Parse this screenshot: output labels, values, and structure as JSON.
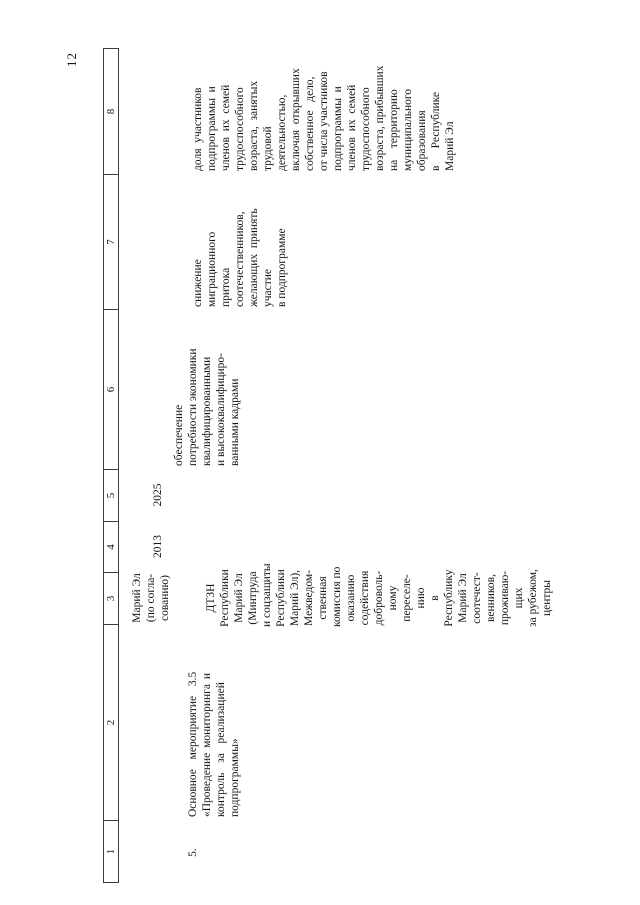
{
  "page": {
    "number": "12"
  },
  "table": {
    "column_numbers": [
      "1",
      "2",
      "3",
      "4",
      "5",
      "6",
      "7",
      "8"
    ],
    "prev_row_tail": {
      "col3_lines": [
        "Марий Эл",
        "(по согла-",
        "сованию)"
      ]
    },
    "row5": {
      "num": "5.",
      "col2_lines": [
        "Основное  мероприятие  3.5",
        "«Проведение мониторинга и",
        "контроль  за  реализацией",
        "подпрограммы»"
      ],
      "col3_lines": [
        "ДТЗН",
        "Республики",
        "Марий Эл",
        "(Минтруда",
        "и соцзащиты",
        "Республики",
        "Марий Эл),",
        "Межведом-",
        "ственная",
        "комиссия по",
        "оказанию",
        "содействия",
        "доброволь-",
        "ному",
        "переселе-",
        "нию",
        "в",
        "Республику",
        "Марий Эл",
        "соотечест-",
        "венников,",
        "проживаю-",
        "щих",
        "за рубежом,",
        "центры"
      ],
      "col4_year": "2013",
      "col5_year": "2025",
      "col6_lines": [
        "обеспечение",
        "потребности экономики",
        "квалифицированными",
        "и высококвалифициро-",
        "ванными кадрами"
      ],
      "col7_lines": [
        "снижение",
        "миграционного",
        "притока",
        "соотечественников,",
        "желающих  принять",
        "участие",
        "в подпрограмме"
      ],
      "col8_lines": [
        "доля  участников",
        "подпрограммы  и",
        "членов  их  семей",
        "трудоспособного",
        "возраста,  занятых",
        "трудовой",
        "деятельностью,",
        "включая  открывших",
        "собственное   дело,",
        "от числа участников",
        "подпрограммы  и",
        "членов  их  семей",
        "трудоспособного",
        "возраста, прибывших",
        "на    территорию",
        "муниципального",
        "образования",
        "в      Республике",
        "Марий Эл"
      ]
    }
  }
}
